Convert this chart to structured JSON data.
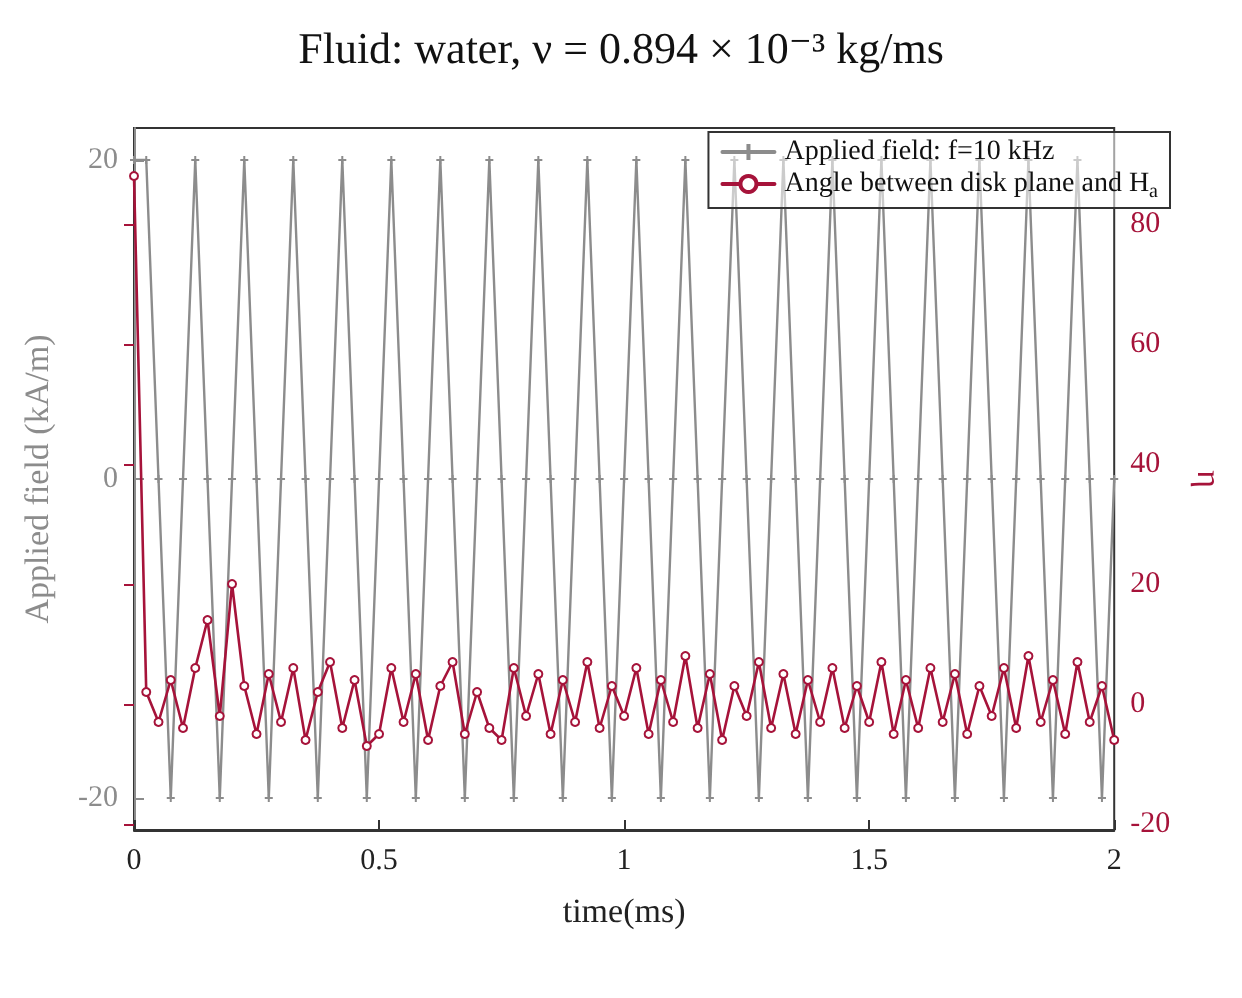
{
  "chart_data": {
    "type": "line",
    "title": "Fluid: water, ν = 0.894 × 10⁻³ kg/ms",
    "xlabel": "time(ms)",
    "ylabel": "Applied field (kA/m)",
    "y2label": "η",
    "x": [
      0,
      0.025,
      0.05,
      0.075,
      0.1,
      0.125,
      0.15,
      0.175,
      0.2,
      0.225,
      0.25,
      0.275,
      0.3,
      0.325,
      0.35,
      0.375,
      0.4,
      0.425,
      0.45,
      0.475,
      0.5,
      0.525,
      0.55,
      0.575,
      0.6,
      0.625,
      0.65,
      0.675,
      0.7,
      0.725,
      0.75,
      0.775,
      0.8,
      0.825,
      0.85,
      0.875,
      0.9,
      0.925,
      0.95,
      0.975,
      1,
      1.025,
      1.05,
      1.075,
      1.1,
      1.125,
      1.15,
      1.175,
      1.2,
      1.225,
      1.25,
      1.275,
      1.3,
      1.325,
      1.35,
      1.375,
      1.4,
      1.425,
      1.45,
      1.475,
      1.5,
      1.525,
      1.55,
      1.575,
      1.6,
      1.625,
      1.65,
      1.675,
      1.7,
      1.725,
      1.75,
      1.775,
      1.8,
      1.825,
      1.85,
      1.875,
      1.9,
      1.925,
      1.95,
      1.975,
      2
    ],
    "series": [
      {
        "name": "Applied field: f=10 kHz",
        "color": "#8c8c8c",
        "marker": "cross",
        "values": [
          20,
          20,
          0,
          -20,
          0,
          20,
          0,
          -20,
          0,
          20,
          0,
          -20,
          0,
          20,
          0,
          -20,
          0,
          20,
          0,
          -20,
          0,
          20,
          0,
          -20,
          0,
          20,
          0,
          -20,
          0,
          20,
          0,
          -20,
          0,
          20,
          0,
          -20,
          0,
          20,
          0,
          -20,
          0,
          20,
          0,
          -20,
          0,
          20,
          0,
          -20,
          0,
          20,
          0,
          -20,
          0,
          20,
          0,
          -20,
          0,
          20,
          0,
          -20,
          0,
          20,
          0,
          -20,
          0,
          20,
          0,
          -20,
          0,
          20,
          0,
          -20,
          0,
          20,
          0,
          -20,
          0,
          20,
          0,
          -20,
          0
        ]
      },
      {
        "name": "Angle between disk plane and H$_{a}$",
        "color": "#a6133a",
        "marker": "circle",
        "axis": "y2",
        "values": [
          88,
          2,
          -3,
          4,
          -4,
          6,
          14,
          -2,
          20,
          3,
          -5,
          5,
          -3,
          6,
          -6,
          2,
          7,
          -4,
          4,
          -7,
          -5,
          6,
          -3,
          5,
          -6,
          3,
          7,
          -5,
          2,
          -4,
          -6,
          6,
          -2,
          5,
          -5,
          4,
          -3,
          7,
          -4,
          3,
          -2,
          6,
          -5,
          4,
          -3,
          8,
          -4,
          5,
          -6,
          3,
          -2,
          7,
          -4,
          5,
          -5,
          4,
          -3,
          6,
          -4,
          3,
          -3,
          7,
          -5,
          4,
          -4,
          6,
          -3,
          5,
          -5,
          3,
          -2,
          6,
          -4,
          8,
          -3,
          4,
          -5,
          7,
          -3,
          3,
          -6
        ]
      }
    ],
    "xlim": [
      0,
      2
    ],
    "xticks": [
      0,
      0.5,
      1,
      1.5,
      2
    ],
    "ylim": [
      -22,
      22
    ],
    "yticks": [
      -20,
      0,
      20
    ],
    "y2lim": [
      -21,
      96
    ],
    "y2ticks": [
      -20,
      0,
      20,
      40,
      60,
      80
    ],
    "legend": "top right",
    "grid": false,
    "line_style": "solid"
  }
}
